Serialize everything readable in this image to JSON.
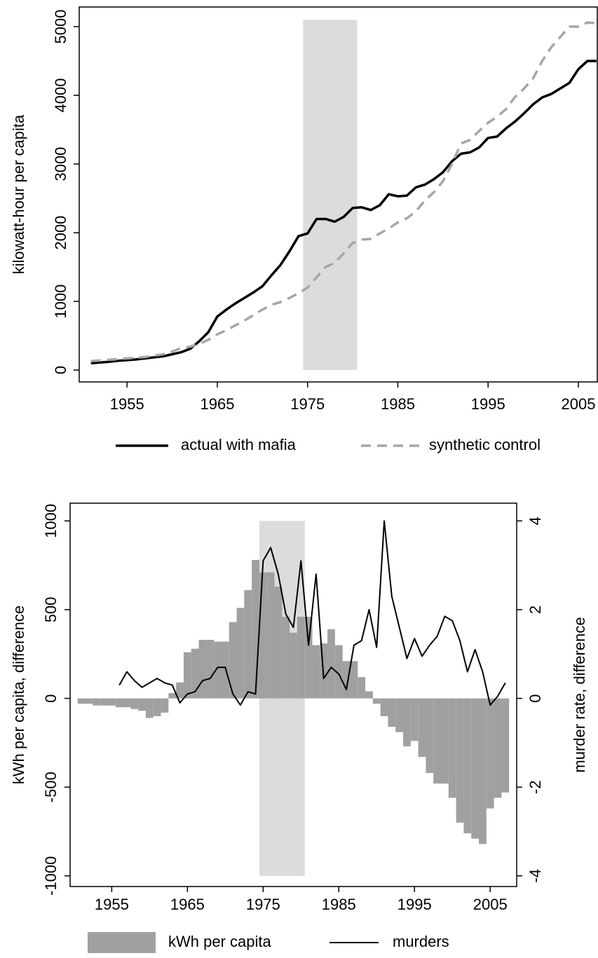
{
  "chart_data": [
    {
      "type": "line",
      "y_label": "kilowatt-hour per capita",
      "xlim": [
        1949.7,
        2007.1
      ],
      "ylim": [
        -173,
        5286
      ],
      "xticks": [
        1955,
        1965,
        1975,
        1985,
        1995,
        2005
      ],
      "yticks": [
        0,
        1000,
        2000,
        3000,
        4000,
        5000
      ],
      "shaded": {
        "x": [
          1974.5,
          1980.5
        ],
        "y": [
          0,
          5100
        ],
        "color": "#dcdcdc"
      },
      "x": [
        1951,
        1952,
        1953,
        1954,
        1955,
        1956,
        1957,
        1958,
        1959,
        1960,
        1961,
        1962,
        1963,
        1964,
        1965,
        1966,
        1967,
        1968,
        1969,
        1970,
        1971,
        1972,
        1973,
        1974,
        1975,
        1976,
        1977,
        1978,
        1979,
        1980,
        1981,
        1982,
        1983,
        1984,
        1985,
        1986,
        1987,
        1988,
        1989,
        1990,
        1991,
        1992,
        1993,
        1994,
        1995,
        1996,
        1997,
        1998,
        1999,
        2000,
        2001,
        2002,
        2003,
        2004,
        2005,
        2006,
        2007
      ],
      "series": [
        {
          "name": "actual with mafia",
          "color": "#000000",
          "dash": "solid",
          "values": [
            100,
            110,
            120,
            135,
            145,
            155,
            170,
            185,
            200,
            230,
            260,
            310,
            420,
            550,
            780,
            880,
            970,
            1050,
            1130,
            1220,
            1380,
            1530,
            1730,
            1950,
            1990,
            2200,
            2200,
            2160,
            2230,
            2360,
            2370,
            2330,
            2400,
            2560,
            2530,
            2540,
            2660,
            2700,
            2780,
            2880,
            3040,
            3150,
            3170,
            3240,
            3380,
            3400,
            3520,
            3620,
            3740,
            3870,
            3970,
            4020,
            4100,
            4180,
            4380,
            4500,
            4500
          ]
        },
        {
          "name": "synthetic control",
          "color": "#a6a6a6",
          "dash": "dashed",
          "values": [
            130,
            140,
            150,
            160,
            170,
            180,
            190,
            210,
            230,
            270,
            320,
            340,
            380,
            440,
            520,
            580,
            650,
            720,
            800,
            880,
            950,
            990,
            1050,
            1120,
            1200,
            1350,
            1500,
            1560,
            1700,
            1850,
            1900,
            1910,
            1990,
            2060,
            2150,
            2210,
            2310,
            2470,
            2590,
            2750,
            3000,
            3300,
            3350,
            3480,
            3600,
            3690,
            3800,
            3980,
            4100,
            4250,
            4500,
            4700,
            4850,
            5000,
            5000,
            5060,
            5050
          ]
        }
      ]
    },
    {
      "type": "bar_line",
      "y_label": "kWh per capita, difference",
      "y2_label": "murder rate, difference",
      "xlim": [
        1949.5,
        2008.5
      ],
      "ylim": [
        -1060,
        1100
      ],
      "y2lim": [
        -4.24,
        4.4
      ],
      "xticks": [
        1955,
        1965,
        1975,
        1985,
        1995,
        2005
      ],
      "yticks": [
        -1000,
        -500,
        0,
        500,
        1000
      ],
      "y2ticks": [
        -4,
        -2,
        0,
        2,
        4
      ],
      "shaded": {
        "x": [
          1974.5,
          1980.5
        ],
        "y": [
          -1000,
          1000
        ],
        "color": "#dcdcdc"
      },
      "x": [
        1951,
        1952,
        1953,
        1954,
        1955,
        1956,
        1957,
        1958,
        1959,
        1960,
        1961,
        1962,
        1963,
        1964,
        1965,
        1966,
        1967,
        1968,
        1969,
        1970,
        1971,
        1972,
        1973,
        1974,
        1975,
        1976,
        1977,
        1978,
        1979,
        1980,
        1981,
        1982,
        1983,
        1984,
        1985,
        1986,
        1987,
        1988,
        1989,
        1990,
        1991,
        1992,
        1993,
        1994,
        1995,
        1996,
        1997,
        1998,
        1999,
        2000,
        2001,
        2002,
        2003,
        2004,
        2005,
        2006,
        2007
      ],
      "series": [
        {
          "name": "kWh per capita",
          "color": "#a0a0a0",
          "mark": "bar",
          "values": [
            -30,
            -30,
            -40,
            -40,
            -40,
            -50,
            -50,
            -60,
            -70,
            -110,
            -100,
            -80,
            30,
            90,
            260,
            280,
            330,
            330,
            320,
            320,
            430,
            510,
            610,
            780,
            710,
            710,
            630,
            460,
            370,
            460,
            460,
            300,
            310,
            390,
            300,
            210,
            210,
            120,
            40,
            -30,
            -100,
            -160,
            -190,
            -270,
            -240,
            -330,
            -420,
            -480,
            -480,
            -560,
            -700,
            -760,
            -790,
            -820,
            -620,
            -560,
            -530
          ]
        },
        {
          "name": "murders",
          "color": "#000000",
          "mark": "line",
          "axis": "y2",
          "values": [
            null,
            null,
            null,
            null,
            null,
            0.3,
            0.6,
            0.4,
            0.25,
            0.35,
            0.45,
            0.35,
            0.3,
            -0.1,
            0.1,
            0.15,
            0.4,
            0.45,
            0.7,
            0.7,
            0.1,
            -0.15,
            0.15,
            0.1,
            3.1,
            3.4,
            2.8,
            1.9,
            1.6,
            3.1,
            1.2,
            2.8,
            0.45,
            0.7,
            0.55,
            0.2,
            1.2,
            1.3,
            2.0,
            1.15,
            4.0,
            2.3,
            1.6,
            0.9,
            1.35,
            0.95,
            1.2,
            1.4,
            1.85,
            1.75,
            1.3,
            0.6,
            1.1,
            0.6,
            -0.15,
            0.05,
            0.35
          ]
        }
      ]
    }
  ]
}
